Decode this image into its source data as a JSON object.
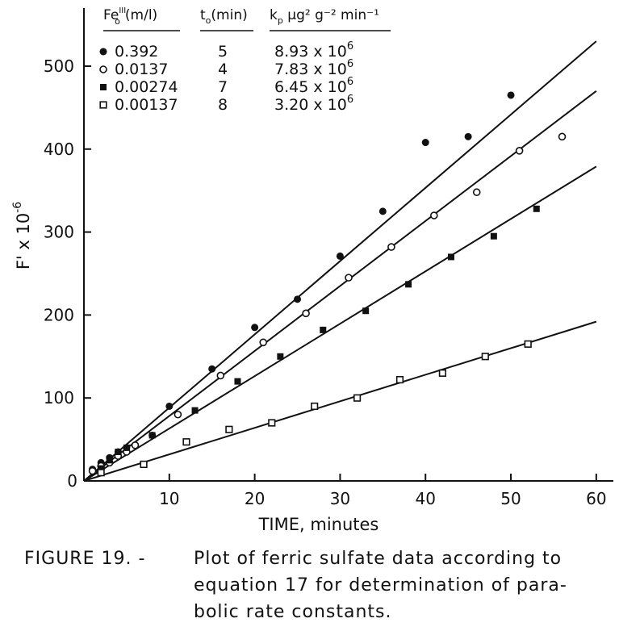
{
  "chart_data": {
    "type": "scatter",
    "xlabel": "TIME, minutes",
    "ylabel": "F' x 10",
    "ylabel_exp": "-6",
    "xlim": [
      0,
      62
    ],
    "ylim": [
      0,
      570
    ],
    "xticks": [
      0,
      10,
      20,
      30,
      40,
      50,
      60
    ],
    "yticks": [
      0,
      100,
      200,
      300,
      400,
      500
    ],
    "grid": false,
    "legend": {
      "position": "top-left",
      "headers": [
        {
          "main": "Fe",
          "sub": "o",
          "sup": "III",
          "rest": "(m/l)"
        },
        {
          "main": "t",
          "sub": "o",
          "sup": "",
          "rest": "(min)"
        },
        {
          "main": "k",
          "sub": "p",
          "sup": "",
          "rest": " μg² g⁻² min⁻¹"
        }
      ],
      "rows": [
        {
          "fe": "0.392",
          "t0": "5",
          "kp_mant": "8.93 x 10",
          "kp_exp": "6",
          "marker": "filled-circle"
        },
        {
          "fe": "0.0137",
          "t0": "4",
          "kp_mant": "7.83 x 10",
          "kp_exp": "6",
          "marker": "open-circle"
        },
        {
          "fe": "0.00274",
          "t0": "7",
          "kp_mant": "6.45 x 10",
          "kp_exp": "6",
          "marker": "filled-square"
        },
        {
          "fe": "0.00137",
          "t0": "8",
          "kp_mant": "3.20 x 10",
          "kp_exp": "6",
          "marker": "open-square"
        }
      ]
    },
    "series": [
      {
        "marker": "filled-circle",
        "line": {
          "x0": 0,
          "y0": 0,
          "x1": 60,
          "y1": 530
        },
        "points": [
          [
            1,
            14
          ],
          [
            2,
            22
          ],
          [
            3,
            28
          ],
          [
            4,
            35
          ],
          [
            5,
            40
          ],
          [
            8,
            55
          ],
          [
            10,
            90
          ],
          [
            15,
            135
          ],
          [
            20,
            185
          ],
          [
            25,
            219
          ],
          [
            30,
            271
          ],
          [
            35,
            325
          ],
          [
            40,
            408
          ],
          [
            45,
            415
          ],
          [
            50,
            465
          ]
        ]
      },
      {
        "marker": "open-circle",
        "line": {
          "x0": 0,
          "y0": 0,
          "x1": 60,
          "y1": 470
        },
        "points": [
          [
            1,
            12
          ],
          [
            2,
            18
          ],
          [
            3,
            22
          ],
          [
            4,
            30
          ],
          [
            5,
            35
          ],
          [
            6,
            43
          ],
          [
            11,
            80
          ],
          [
            16,
            127
          ],
          [
            21,
            167
          ],
          [
            26,
            202
          ],
          [
            31,
            245
          ],
          [
            36,
            282
          ],
          [
            41,
            320
          ],
          [
            46,
            348
          ],
          [
            51,
            398
          ],
          [
            56,
            415
          ]
        ]
      },
      {
        "marker": "filled-square",
        "line": {
          "x0": 0,
          "y0": 0,
          "x1": 60,
          "y1": 379
        },
        "points": [
          [
            2,
            15
          ],
          [
            3,
            25
          ],
          [
            4,
            35
          ],
          [
            5,
            40
          ],
          [
            8,
            55
          ],
          [
            13,
            85
          ],
          [
            18,
            120
          ],
          [
            23,
            150
          ],
          [
            28,
            182
          ],
          [
            33,
            205
          ],
          [
            38,
            237
          ],
          [
            43,
            270
          ],
          [
            48,
            295
          ],
          [
            53,
            328
          ]
        ]
      },
      {
        "marker": "open-square",
        "line": {
          "x0": 0,
          "y0": 0,
          "x1": 60,
          "y1": 192
        },
        "points": [
          [
            2,
            10
          ],
          [
            7,
            20
          ],
          [
            12,
            47
          ],
          [
            17,
            62
          ],
          [
            22,
            70
          ],
          [
            27,
            90
          ],
          [
            32,
            100
          ],
          [
            37,
            122
          ],
          [
            42,
            130
          ],
          [
            47,
            150
          ],
          [
            52,
            165
          ]
        ]
      }
    ]
  },
  "caption": {
    "label": "FIGURE 19. -",
    "lines": [
      "Plot of ferric sulfate data according to",
      "equation 17 for determination of para-",
      "bolic rate constants."
    ]
  }
}
